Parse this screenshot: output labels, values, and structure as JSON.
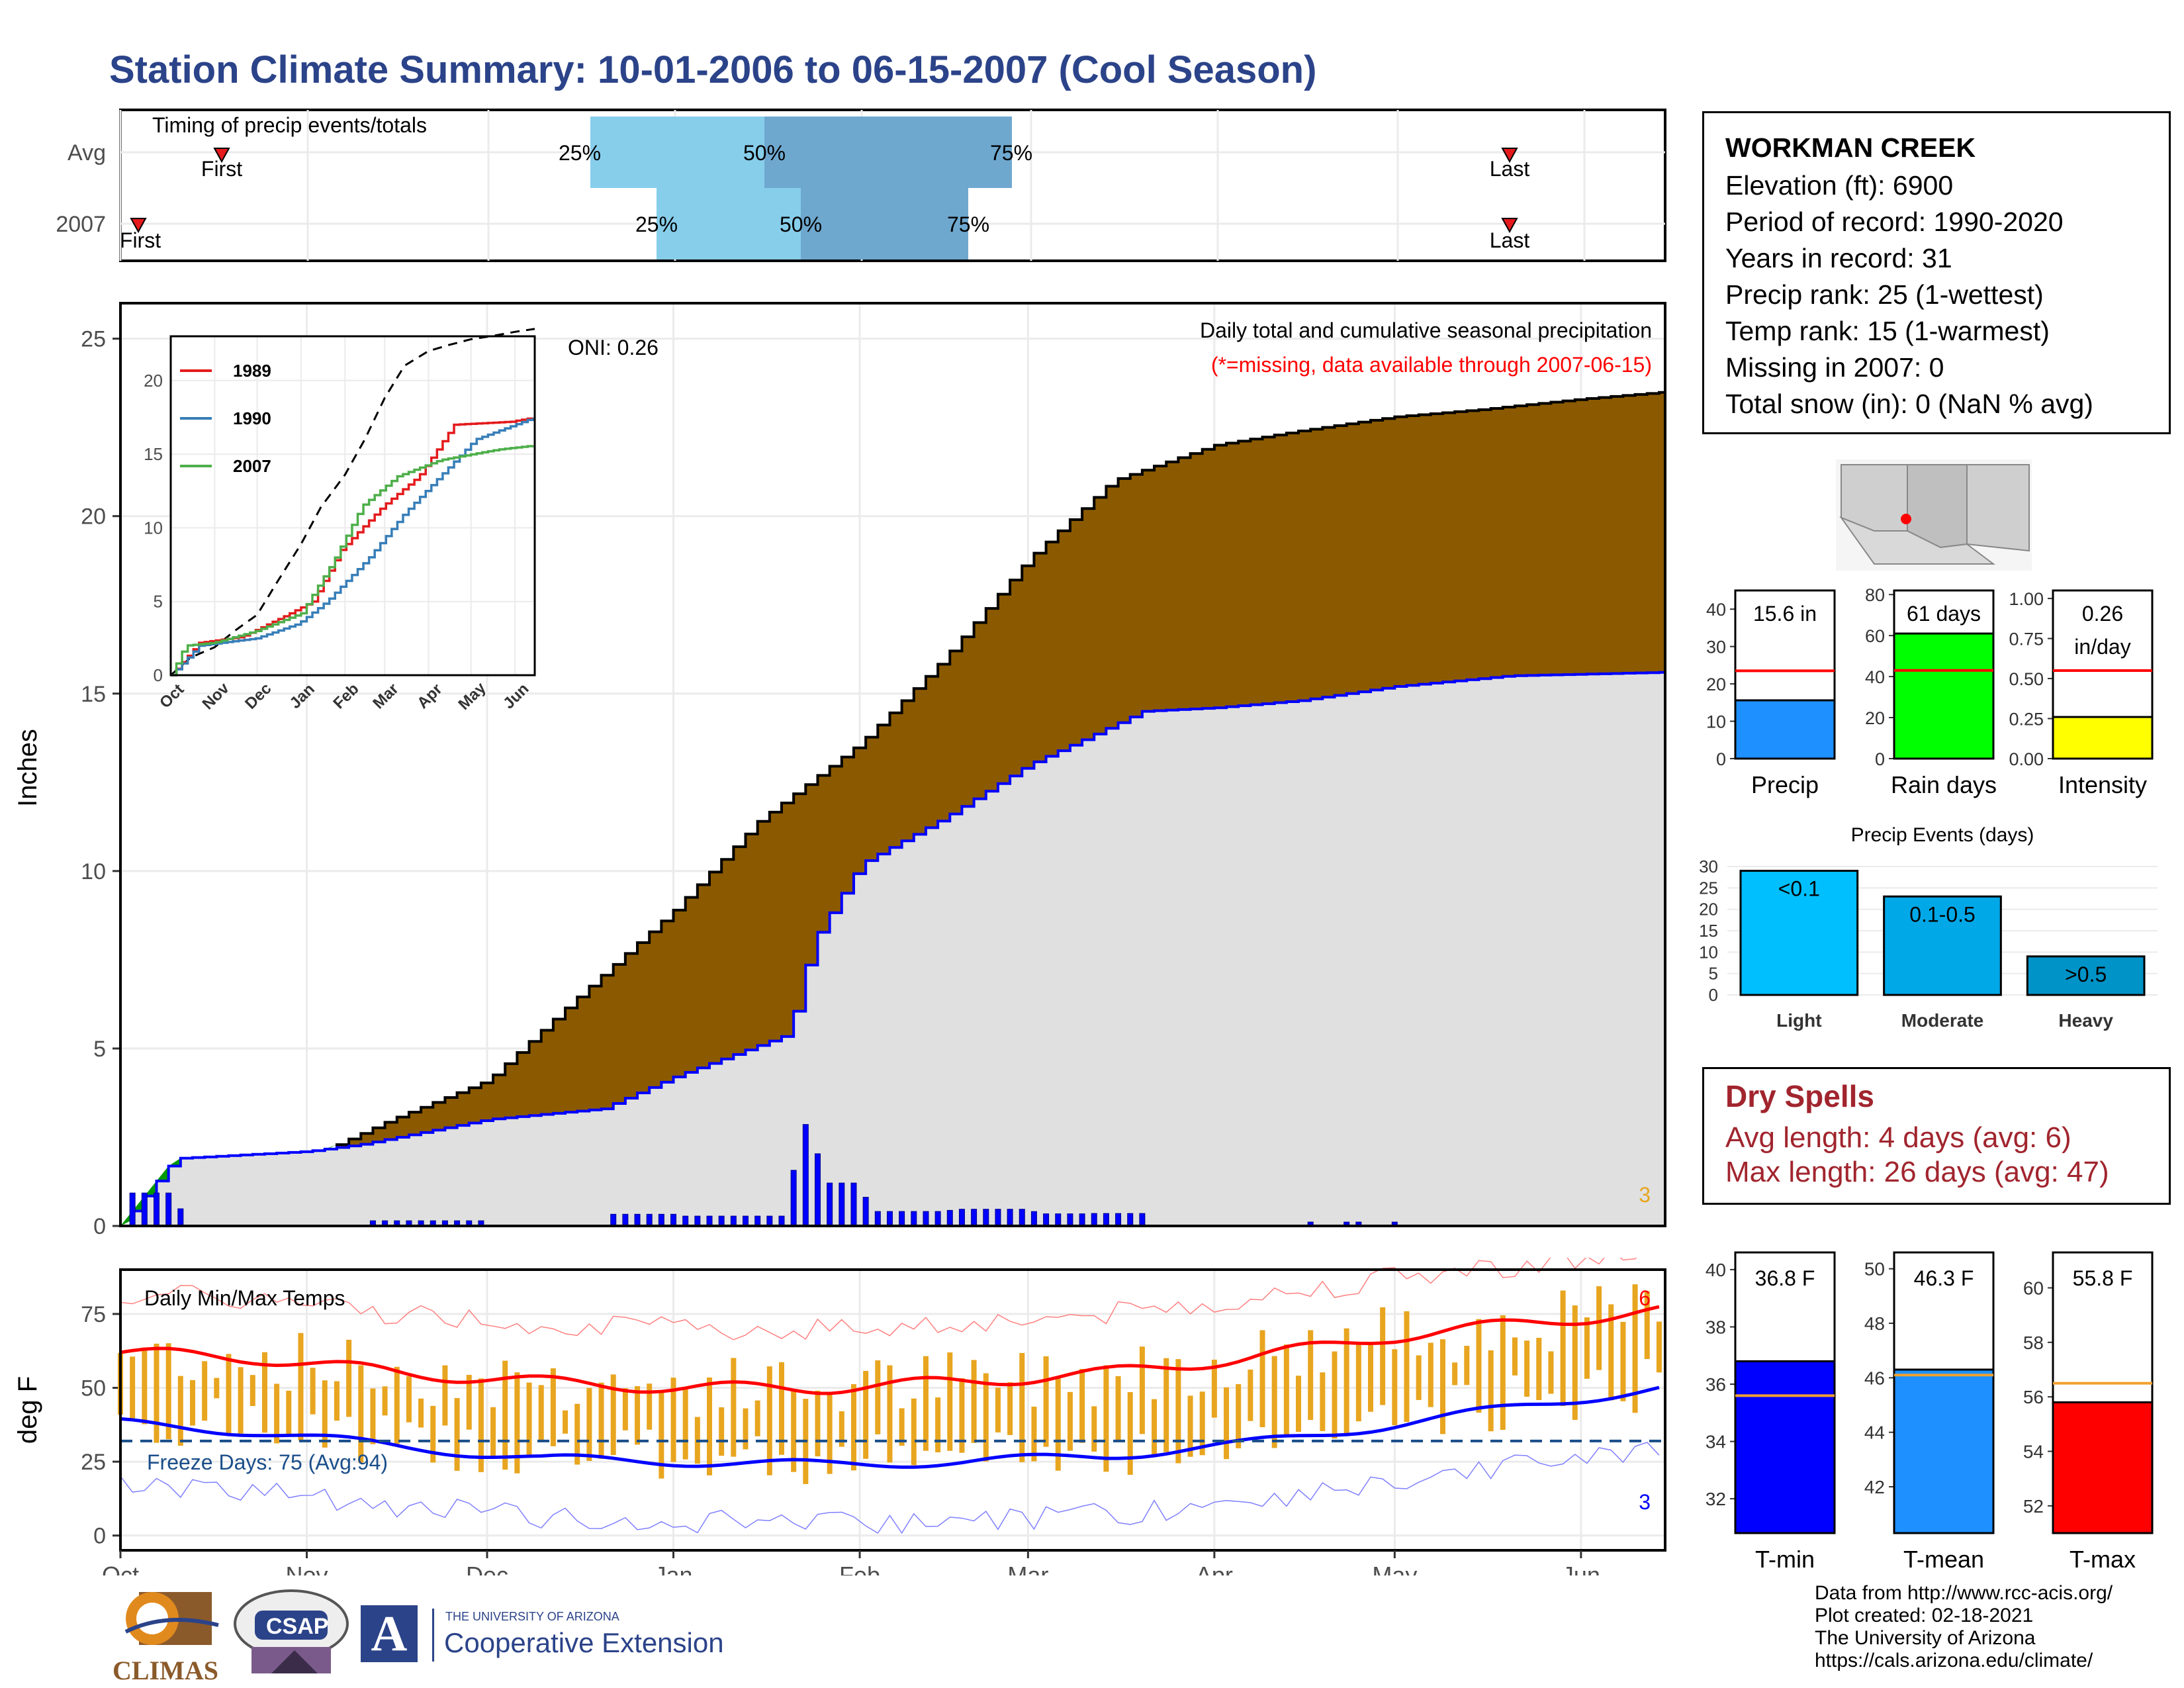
{
  "title": "Station Climate Summary: 10-01-2006 to 06-15-2007 (Cool Season)",
  "colors": {
    "title": "#2b4389",
    "brown": "#8b5a00",
    "current_fill": "#e0e0e0",
    "blue": "#0000ff",
    "green": "#009900",
    "light_blue": "#87ceeb",
    "mid_blue": "#6fa8cf",
    "orange": "#e8a51f",
    "red": "#ff0000",
    "dry_red": "#a1252e"
  },
  "months": [
    "Oct",
    "Nov",
    "Dec",
    "Jan",
    "Feb",
    "Mar",
    "Apr",
    "May",
    "Jun"
  ],
  "timing": {
    "label": "Timing of precip events/totals",
    "rows": [
      {
        "name": "Avg",
        "first_label": "First",
        "last_label": "Last",
        "p25": "25%",
        "p50": "50%",
        "p75": "75%"
      },
      {
        "name": "2007",
        "first_label": "First",
        "last_label": "Last",
        "p25": "25%",
        "p50": "50%",
        "p75": "75%"
      }
    ]
  },
  "station": {
    "name": "WORKMAN CREEK",
    "lines": [
      "Elevation (ft): 6900",
      "Period of record: 1990-2020",
      "Years in record: 31",
      "Precip rank: 25 (1-wettest)",
      "Temp rank: 15 (1-warmest)",
      "Missing in 2007: 0",
      "Total snow (in): 0 (NaN % avg)"
    ]
  },
  "precip_panel": {
    "title": "Daily total and cumulative seasonal precipitation",
    "missing_note": "(*=missing, data available through 2007-06-15)",
    "oni": "ONI: 0.26",
    "y_label": "Inches",
    "y_ticks": [
      "0",
      "5",
      "10",
      "15",
      "20",
      "25"
    ],
    "corner_count": "3"
  },
  "temp_panel": {
    "title": "Daily Min/Max Temps",
    "y_label": "deg F",
    "y_ticks": [
      "0",
      "25",
      "50",
      "75"
    ],
    "freeze": "Freeze Days: 75 (Avg:94)",
    "top_count": "6",
    "bottom_count": "3"
  },
  "inset": {
    "y_ticks": [
      "0",
      "5",
      "10",
      "15",
      "20"
    ],
    "x_ticks": [
      "Oct",
      "Nov",
      "Dec",
      "Jan",
      "Feb",
      "Mar",
      "Apr",
      "May",
      "Jun"
    ],
    "legend": [
      {
        "name": "1989",
        "color": "#e41a1c"
      },
      {
        "name": "1990",
        "color": "#377eb8"
      },
      {
        "name": "2007",
        "color": "#4daf4a"
      }
    ]
  },
  "precip_bars": [
    {
      "label": "15.6 in",
      "name": "Precip",
      "value": 15.6,
      "avg": 23.5,
      "ymax": 45,
      "ticks": [
        "0",
        "10",
        "20",
        "30",
        "40"
      ],
      "color": "#1e90ff"
    },
    {
      "label": "61 days",
      "name": "Rain days",
      "value": 61,
      "avg": 43,
      "ymax": 82,
      "ticks": [
        "0",
        "20",
        "40",
        "60",
        "80"
      ],
      "color": "#00ff00"
    },
    {
      "label": "0.26",
      "label2": "in/day",
      "name": "Intensity",
      "value": 0.26,
      "avg": 0.55,
      "ymax": 1.05,
      "ticks": [
        "0.00",
        "0.25",
        "0.50",
        "0.75",
        "1.00"
      ],
      "color": "#ffff00"
    }
  ],
  "events": {
    "title": "Precip Events (days)",
    "ticks": [
      "0",
      "5",
      "10",
      "15",
      "20",
      "25",
      "30"
    ],
    "bars": [
      {
        "name": "Light",
        "label": "<0.1",
        "value": 29,
        "color": "#00bfff"
      },
      {
        "name": "Moderate",
        "label": "0.1-0.5",
        "value": 23,
        "color": "#00a8e8"
      },
      {
        "name": "Heavy",
        "label": ">0.5",
        "value": 9,
        "color": "#0093c8"
      }
    ]
  },
  "dry_spells": {
    "title": "Dry Spells",
    "avg_line": "Avg length: 4 days (avg: 6)",
    "max_line": "Max length: 26 days (avg: 47)"
  },
  "temp_bars": [
    {
      "label": "36.8 F",
      "name": "T-min",
      "value": 36.8,
      "avg": 35.6,
      "ymin": 30.8,
      "ymax": 40.6,
      "ticks": [
        "32",
        "34",
        "36",
        "38",
        "40"
      ],
      "color": "#0000ff"
    },
    {
      "label": "46.3 F",
      "name": "T-mean",
      "value": 46.3,
      "avg": 46.1,
      "ymin": 40.3,
      "ymax": 50.6,
      "ticks": [
        "42",
        "44",
        "46",
        "48",
        "50"
      ],
      "color": "#1e90ff"
    },
    {
      "label": "55.8 F",
      "name": "T-max",
      "value": 55.8,
      "avg": 56.5,
      "ymin": 51.0,
      "ymax": 61.3,
      "ticks": [
        "52",
        "54",
        "56",
        "58",
        "60"
      ],
      "color": "#ff0000"
    }
  ],
  "credits": {
    "line1": "Data from http://www.rcc-acis.org/",
    "line2": "Plot created: 02-18-2021",
    "line3": "The University of Arizona",
    "line4": "https://cals.arizona.edu/climate/"
  },
  "logos": {
    "climas": "CLIMAS",
    "csap": "CSAP",
    "ua_small": "THE UNIVERSITY OF ARIZONA",
    "ua_big": "Cooperative Extension"
  },
  "chart_data": {
    "type": "area",
    "title": "Daily total and cumulative seasonal precipitation",
    "ylabel": "Inches",
    "ylim": [
      0,
      26
    ],
    "x_ticks": [
      "Oct",
      "Nov",
      "Dec",
      "Jan",
      "Feb",
      "Mar",
      "Apr",
      "May",
      "Jun"
    ],
    "series": [
      {
        "name": "avg_cumulative",
        "dates": [
          "10-01",
          "10-15",
          "11-01",
          "11-15",
          "12-01",
          "12-15",
          "01-01",
          "01-15",
          "02-01",
          "02-15",
          "03-01",
          "03-15",
          "04-01",
          "04-15",
          "05-01",
          "05-15",
          "06-01",
          "06-15"
        ],
        "values": [
          0,
          1.2,
          1.9,
          3.0,
          4.1,
          6.3,
          8.9,
          11.4,
          13.6,
          16.0,
          18.8,
          21.0,
          22.0,
          22.4,
          22.8,
          23.0,
          23.3,
          23.5
        ]
      },
      {
        "name": "current_cumulative",
        "dates": [
          "10-01",
          "10-10",
          "11-01",
          "11-10",
          "12-01",
          "12-20",
          "01-01",
          "01-20",
          "01-24",
          "02-01",
          "02-15",
          "03-01",
          "03-10",
          "03-20",
          "04-01",
          "04-15",
          "05-01",
          "05-20",
          "06-15"
        ],
        "values": [
          0,
          1.9,
          2.1,
          2.3,
          3.0,
          3.3,
          4.2,
          5.4,
          8.0,
          10.2,
          11.5,
          13.0,
          13.7,
          14.5,
          14.6,
          14.8,
          15.2,
          15.5,
          15.6
        ]
      }
    ],
    "temps": {
      "ylim": [
        -5,
        90
      ],
      "avg_max": [
        62,
        60,
        55,
        52,
        50,
        50,
        52,
        55,
        60,
        67,
        72,
        76
      ],
      "avg_min": [
        38,
        35,
        30,
        26,
        25,
        24,
        25,
        27,
        31,
        37,
        44,
        50
      ],
      "freeze_line": 32
    }
  }
}
